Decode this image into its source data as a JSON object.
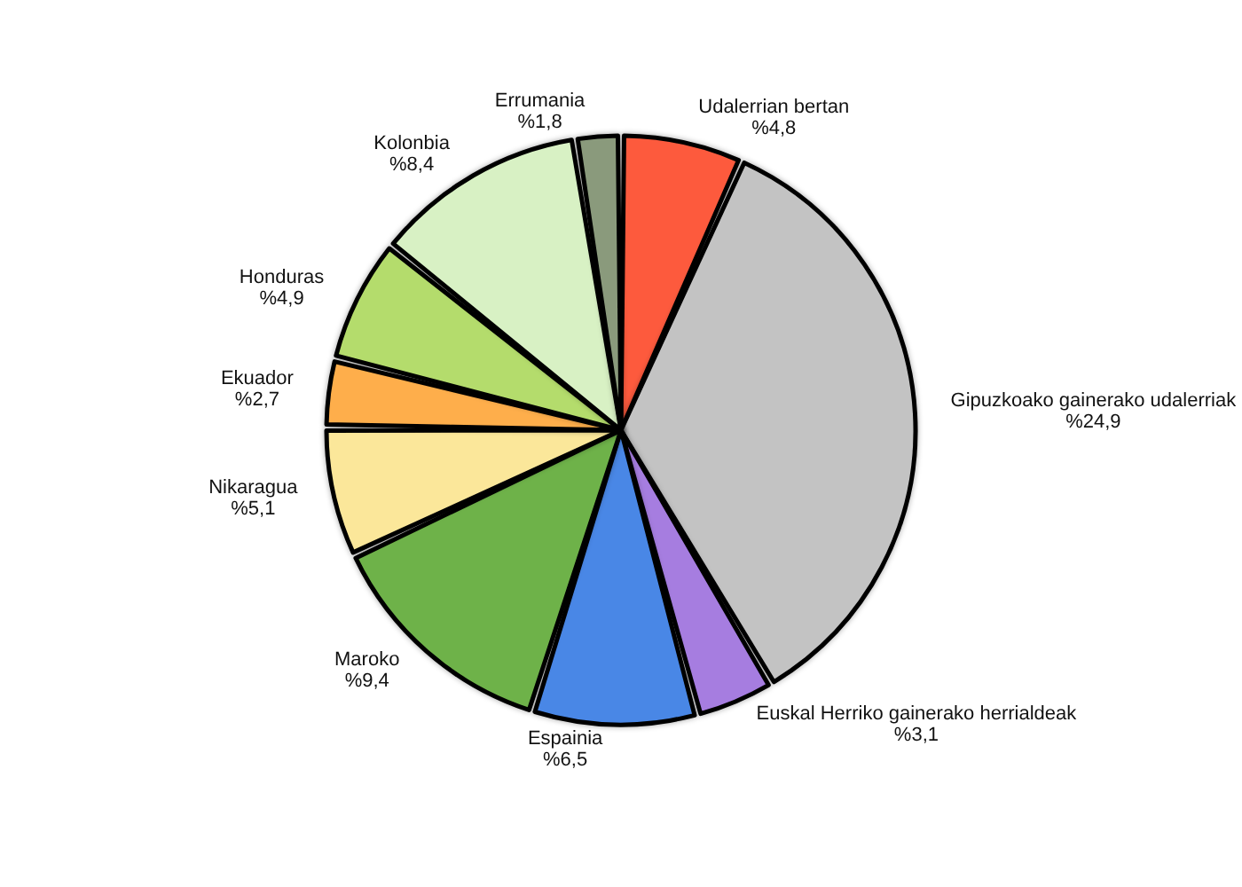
{
  "chart_data": {
    "type": "pie",
    "categories": [
      "Udalerrian bertan",
      "Gipuzkoako gainerako udalerriak",
      "Euskal Herriko gainerako herrialdeak",
      "Espainia",
      "Maroko",
      "Nikaragua",
      "Ekuador",
      "Honduras",
      "Kolonbia",
      "Errumania"
    ],
    "values": [
      4.8,
      24.9,
      3.1,
      6.5,
      9.4,
      5.1,
      2.7,
      4.9,
      8.4,
      1.8
    ],
    "value_labels": [
      "%4,8",
      "%24,9",
      "%3,1",
      "%6,5",
      "%9,4",
      "%5,1",
      "%2,7",
      "%4,9",
      "%8,4",
      "%1,8"
    ],
    "colors": [
      "#fd5a3e",
      "#c3c3c3",
      "#a67de0",
      "#4a87e6",
      "#6eb24a",
      "#fbe79a",
      "#feae4b",
      "#b4dc6c",
      "#d8f1c4",
      "#8a9a7c"
    ]
  }
}
